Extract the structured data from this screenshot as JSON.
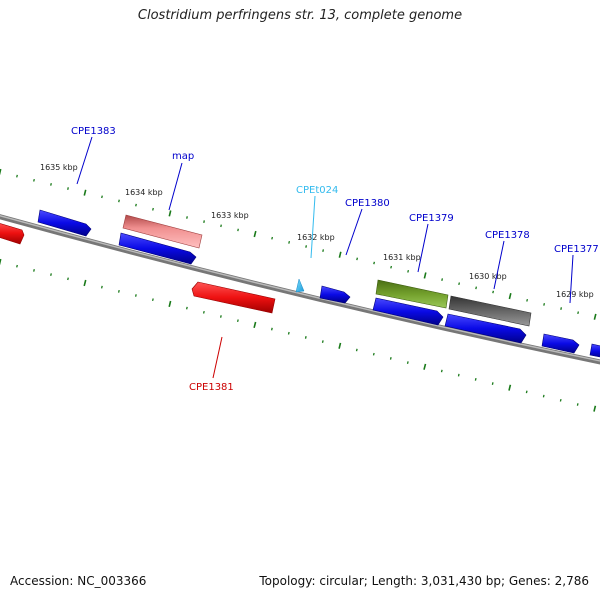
{
  "title": "Clostridium perfringens str. 13, complete genome",
  "footer": {
    "accession": "Accession: NC_003366",
    "summary": "Topology: circular; Length: 3,031,430 bp; Genes: 2,786"
  },
  "colors": {
    "backbone": "#7a7a7a",
    "tick": "#1a7a1a",
    "gene_forward": "#0a0ae6",
    "gene_reverse": "#ee1111",
    "gene_map": "#e88888",
    "gene_olive": "#6e9a28",
    "gene_gray": "#666666",
    "label_blue": "#0000cc",
    "label_red": "#cc0000",
    "label_cyan": "#33bbee"
  },
  "scale_labels": [
    "1635 kbp",
    "1634 kbp",
    "1633 kbp",
    "1632 kbp",
    "1631 kbp",
    "1630 kbp",
    "1629 kbp"
  ],
  "gene_labels": [
    {
      "id": "CPE1383",
      "color": "label_blue"
    },
    {
      "id": "map",
      "color": "label_blue"
    },
    {
      "id": "CPEt024",
      "color": "label_cyan"
    },
    {
      "id": "CPE1380",
      "color": "label_blue"
    },
    {
      "id": "CPE1379",
      "color": "label_blue"
    },
    {
      "id": "CPE1378",
      "color": "label_blue"
    },
    {
      "id": "CPE1377",
      "color": "label_blue"
    },
    {
      "id": "CPE1381",
      "color": "label_red"
    }
  ]
}
